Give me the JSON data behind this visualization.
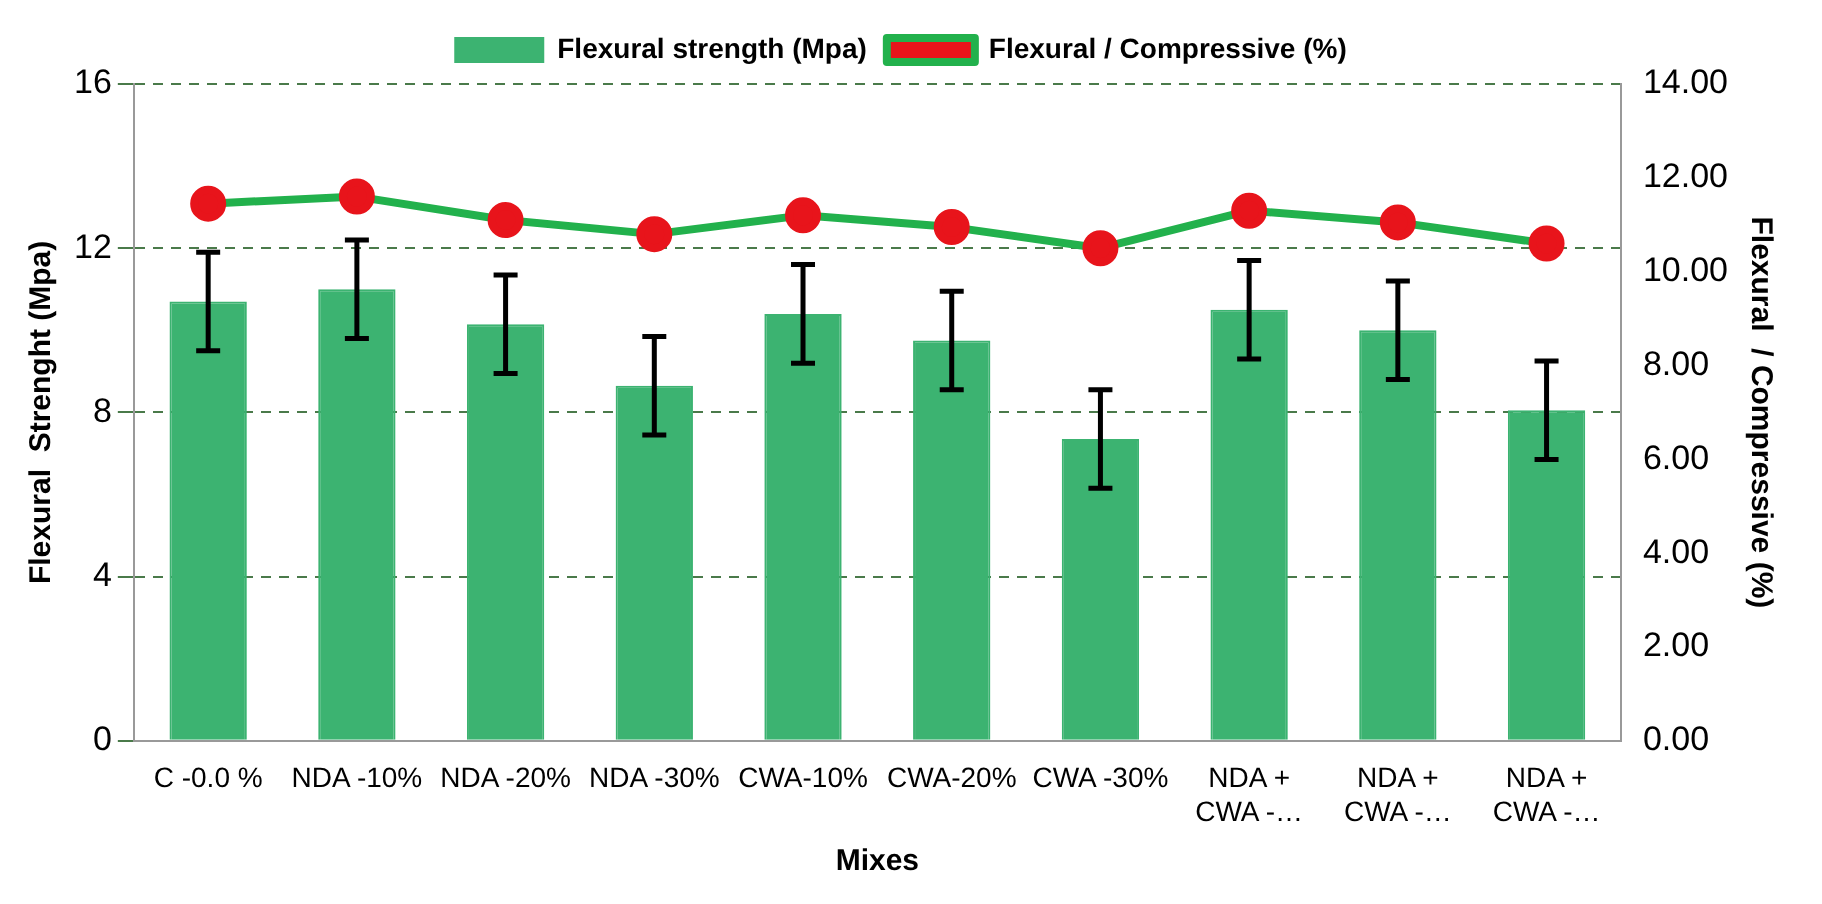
{
  "chart_data": {
    "type": "bar",
    "xlabel": "Mixes",
    "ylabel": "Flexural  Strenght (Mpa)",
    "y2label": "Flexural  / Compressive (%)",
    "categories": [
      "C -0.0 %",
      "NDA -10%",
      "NDA -20%",
      "NDA -30%",
      "CWA-10%",
      "CWA-20%",
      "CWA -30%",
      "NDA + CWA -…",
      "NDA + CWA -…",
      "NDA + CWA -…"
    ],
    "series": [
      {
        "name": "Flexural strength (Mpa)",
        "color": "#3cb371",
        "values": [
          10.7,
          11.0,
          10.15,
          8.65,
          10.4,
          9.75,
          7.35,
          10.5,
          10.0,
          8.05
        ],
        "errors": [
          1.2,
          1.2,
          1.2,
          1.2,
          1.2,
          1.2,
          1.2,
          1.2,
          1.2,
          1.2
        ]
      },
      {
        "name": "Flexural / Compressive (%)",
        "type": "line",
        "axis": "y2",
        "color": "#22b14c",
        "marker": "circle",
        "values": [
          11.45,
          11.6,
          11.1,
          10.8,
          11.2,
          10.95,
          10.5,
          11.3,
          11.05,
          10.6
        ]
      }
    ],
    "ylim": [
      0,
      16
    ],
    "yticks": [
      0,
      4,
      8,
      12,
      16
    ],
    "y2lim": [
      0,
      14
    ],
    "y2ticks": [
      {
        "value": 0,
        "label": "0.00"
      },
      {
        "value": 2,
        "label": "2.00"
      },
      {
        "value": 4,
        "label": "4.00"
      },
      {
        "value": 6,
        "label": "6.00"
      },
      {
        "value": 8,
        "label": "8.00"
      },
      {
        "value": 10,
        "label": "10.00"
      },
      {
        "value": 12,
        "label": "12.00"
      },
      {
        "value": 14,
        "label": "14.00"
      }
    ],
    "grid": "y",
    "legend": "top"
  }
}
